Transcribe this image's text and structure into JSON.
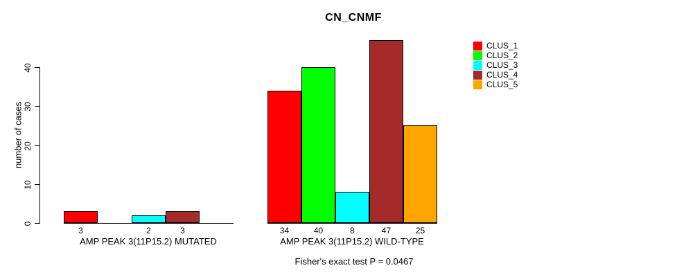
{
  "title": "CN_CNMF",
  "footer": "Fisher's exact test P = 0.0467",
  "y_axis": {
    "label": "number of cases",
    "ticks": [
      0,
      10,
      20,
      30,
      40
    ]
  },
  "legend": {
    "items": [
      {
        "label": "CLUS_1",
        "color": "#FF0000"
      },
      {
        "label": "CLUS_2",
        "color": "#00FF00"
      },
      {
        "label": "CLUS_3",
        "color": "#00FFFF"
      },
      {
        "label": "CLUS_4",
        "color": "#A52A2A"
      },
      {
        "label": "CLUS_5",
        "color": "#FFA500"
      }
    ]
  },
  "chart_data": {
    "type": "bar",
    "title": "CN_CNMF",
    "xlabel": "",
    "ylabel": "number of cases",
    "categories": [
      "AMP PEAK 3(11P15.2) MUTATED",
      "AMP PEAK 3(11P15.2) WILD-TYPE"
    ],
    "series": [
      {
        "name": "CLUS_1",
        "color": "#FF0000",
        "values": [
          3,
          34
        ]
      },
      {
        "name": "CLUS_2",
        "color": "#00FF00",
        "values": [
          0,
          40
        ]
      },
      {
        "name": "CLUS_3",
        "color": "#00FFFF",
        "values": [
          2,
          8
        ]
      },
      {
        "name": "CLUS_4",
        "color": "#A52A2A",
        "values": [
          3,
          47
        ]
      },
      {
        "name": "CLUS_5",
        "color": "#FFA500",
        "values": [
          0,
          25
        ]
      }
    ],
    "bar_value_labels": [
      [
        "3",
        "",
        "2",
        "3",
        ""
      ],
      [
        "34",
        "40",
        "8",
        "47",
        "25"
      ]
    ],
    "yticks": [
      0,
      10,
      20,
      30,
      40
    ],
    "ylim": [
      0,
      47
    ],
    "grid": false,
    "legend_position": "right",
    "annotation": "Fisher's exact test P = 0.0467",
    "axis_color": "#000000",
    "background_color": "#FFFFFF"
  }
}
